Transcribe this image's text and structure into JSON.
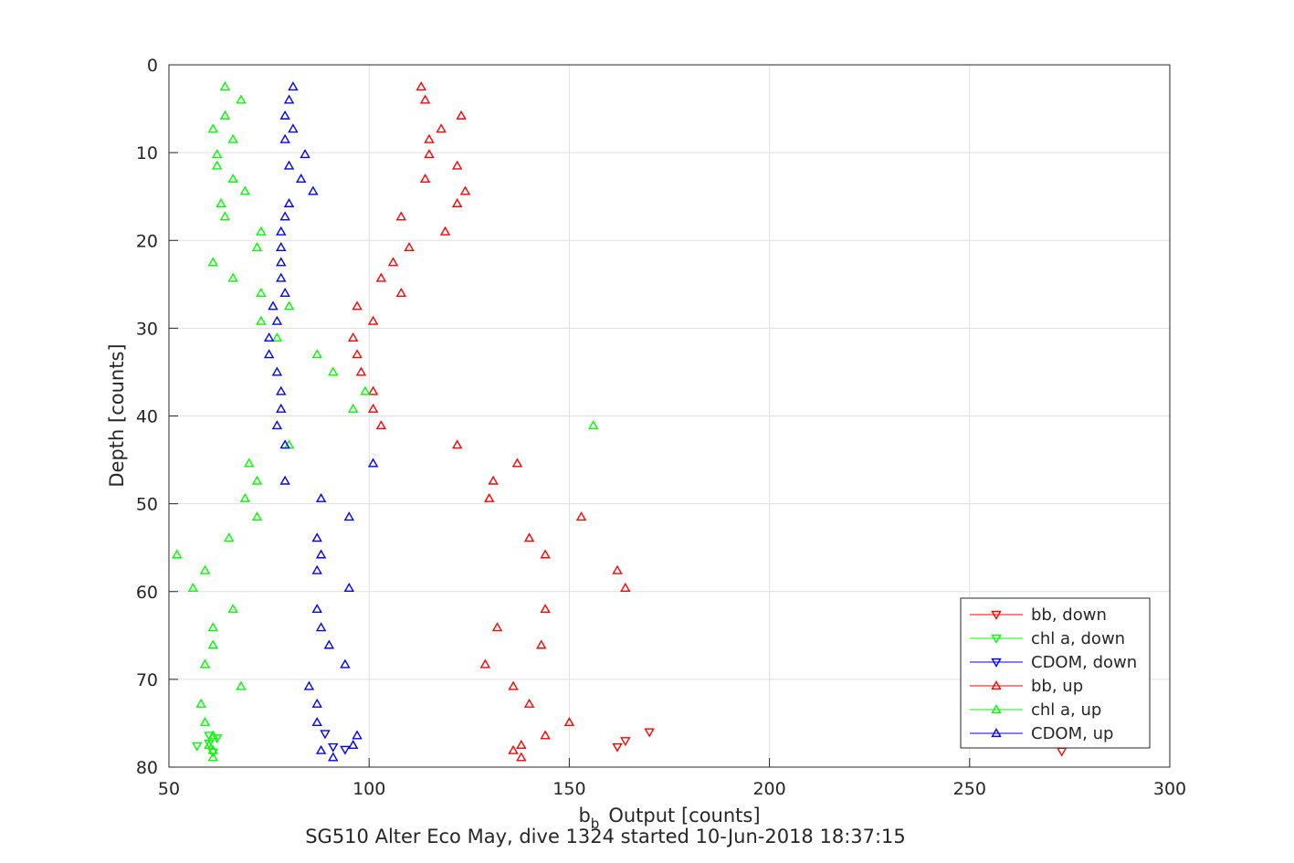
{
  "chart_data": {
    "type": "scatter",
    "title": "SG510 Alter Eco May, dive 1324 started 10-Jun-2018 18:37:15",
    "xlabel": "Output [counts]",
    "xlabel_prefix": "b",
    "xlabel_sub": "b",
    "ylabel": "Depth [counts]",
    "xlim": [
      50,
      300
    ],
    "ylim": [
      0,
      80
    ],
    "y_reversed": true,
    "grid": true,
    "legend_position": "bottom-right",
    "xticks": [
      "50",
      "100",
      "150",
      "200",
      "250",
      "300"
    ],
    "yticks": [
      "0",
      "10",
      "20",
      "30",
      "40",
      "50",
      "60",
      "70",
      "80"
    ],
    "series": [
      {
        "name": "bb, down",
        "color": "#ff0000",
        "marker": "triangle-down",
        "points": [
          [
            273,
            78.2
          ],
          [
            170,
            76.0
          ],
          [
            164,
            77.0
          ],
          [
            162,
            77.7
          ]
        ]
      },
      {
        "name": "chl a, down",
        "color": "#00ff00",
        "marker": "triangle-down",
        "points": [
          [
            57,
            77.6
          ],
          [
            60,
            76.4
          ],
          [
            60,
            77.3
          ],
          [
            61,
            78.3
          ],
          [
            62,
            76.7
          ]
        ]
      },
      {
        "name": "CDOM, down",
        "color": "#0000ff",
        "marker": "triangle-down",
        "points": [
          [
            91,
            77.7
          ],
          [
            94,
            78.0
          ],
          [
            89,
            76.2
          ]
        ]
      },
      {
        "name": "bb, up",
        "color": "#ff0000",
        "marker": "triangle-up",
        "points": [
          [
            113,
            2.5
          ],
          [
            114,
            4.0
          ],
          [
            123,
            5.8
          ],
          [
            118,
            7.3
          ],
          [
            115,
            8.5
          ],
          [
            115,
            10.2
          ],
          [
            122,
            11.5
          ],
          [
            114,
            13.0
          ],
          [
            124,
            14.4
          ],
          [
            122,
            15.8
          ],
          [
            108,
            17.3
          ],
          [
            119,
            19.0
          ],
          [
            110,
            20.8
          ],
          [
            106,
            22.5
          ],
          [
            103,
            24.3
          ],
          [
            108,
            26.0
          ],
          [
            97,
            27.5
          ],
          [
            101,
            29.2
          ],
          [
            96,
            31.1
          ],
          [
            97,
            33.0
          ],
          [
            98,
            35.0
          ],
          [
            101,
            37.2
          ],
          [
            101,
            39.2
          ],
          [
            103,
            41.1
          ],
          [
            122,
            43.3
          ],
          [
            137,
            45.4
          ],
          [
            131,
            47.4
          ],
          [
            130,
            49.4
          ],
          [
            153,
            51.5
          ],
          [
            140,
            53.9
          ],
          [
            144,
            55.8
          ],
          [
            162,
            57.6
          ],
          [
            164,
            59.6
          ],
          [
            144,
            62.0
          ],
          [
            132,
            64.1
          ],
          [
            143,
            66.1
          ],
          [
            129,
            68.3
          ],
          [
            136,
            70.8
          ],
          [
            140,
            72.8
          ],
          [
            150,
            74.9
          ],
          [
            144,
            76.4
          ],
          [
            138,
            77.5
          ],
          [
            136,
            78.1
          ],
          [
            138,
            78.9
          ]
        ]
      },
      {
        "name": "chl a, up",
        "color": "#00ff00",
        "marker": "triangle-up",
        "points": [
          [
            64,
            2.5
          ],
          [
            68,
            4.0
          ],
          [
            64,
            5.8
          ],
          [
            61,
            7.3
          ],
          [
            66,
            8.5
          ],
          [
            62,
            10.2
          ],
          [
            62,
            11.5
          ],
          [
            66,
            13.0
          ],
          [
            69,
            14.4
          ],
          [
            63,
            15.8
          ],
          [
            64,
            17.3
          ],
          [
            73,
            19.0
          ],
          [
            72,
            20.8
          ],
          [
            61,
            22.5
          ],
          [
            66,
            24.3
          ],
          [
            73,
            26.0
          ],
          [
            80,
            27.5
          ],
          [
            73,
            29.2
          ],
          [
            77,
            31.1
          ],
          [
            87,
            33.0
          ],
          [
            91,
            35.0
          ],
          [
            99,
            37.2
          ],
          [
            96,
            39.2
          ],
          [
            156,
            41.1
          ],
          [
            80,
            43.3
          ],
          [
            70,
            45.4
          ],
          [
            72,
            47.4
          ],
          [
            69,
            49.4
          ],
          [
            72,
            51.5
          ],
          [
            65,
            53.9
          ],
          [
            52,
            55.8
          ],
          [
            59,
            57.6
          ],
          [
            56,
            59.6
          ],
          [
            66,
            62.0
          ],
          [
            61,
            64.1
          ],
          [
            61,
            66.1
          ],
          [
            59,
            68.3
          ],
          [
            68,
            70.8
          ],
          [
            58,
            72.8
          ],
          [
            59,
            74.9
          ],
          [
            61,
            76.4
          ],
          [
            60,
            77.5
          ],
          [
            61,
            78.1
          ],
          [
            61,
            78.9
          ]
        ]
      },
      {
        "name": "CDOM, up",
        "color": "#0000ff",
        "marker": "triangle-up",
        "points": [
          [
            81,
            2.5
          ],
          [
            80,
            4.0
          ],
          [
            79,
            5.8
          ],
          [
            81,
            7.3
          ],
          [
            79,
            8.5
          ],
          [
            84,
            10.2
          ],
          [
            80,
            11.5
          ],
          [
            83,
            13.0
          ],
          [
            86,
            14.4
          ],
          [
            80,
            15.8
          ],
          [
            79,
            17.3
          ],
          [
            78,
            19.0
          ],
          [
            78,
            20.8
          ],
          [
            78,
            22.5
          ],
          [
            78,
            24.3
          ],
          [
            79,
            26.0
          ],
          [
            76,
            27.5
          ],
          [
            77,
            29.2
          ],
          [
            75,
            31.1
          ],
          [
            75,
            33.0
          ],
          [
            77,
            35.0
          ],
          [
            78,
            37.2
          ],
          [
            78,
            39.2
          ],
          [
            77,
            41.1
          ],
          [
            79,
            43.3
          ],
          [
            101,
            45.4
          ],
          [
            79,
            47.4
          ],
          [
            88,
            49.4
          ],
          [
            95,
            51.5
          ],
          [
            87,
            53.9
          ],
          [
            88,
            55.8
          ],
          [
            87,
            57.6
          ],
          [
            95,
            59.6
          ],
          [
            87,
            62.0
          ],
          [
            88,
            64.1
          ],
          [
            90,
            66.1
          ],
          [
            94,
            68.3
          ],
          [
            85,
            70.8
          ],
          [
            87,
            72.8
          ],
          [
            87,
            74.9
          ],
          [
            97,
            76.4
          ],
          [
            96,
            77.5
          ],
          [
            88,
            78.1
          ],
          [
            91,
            78.9
          ]
        ]
      }
    ]
  }
}
